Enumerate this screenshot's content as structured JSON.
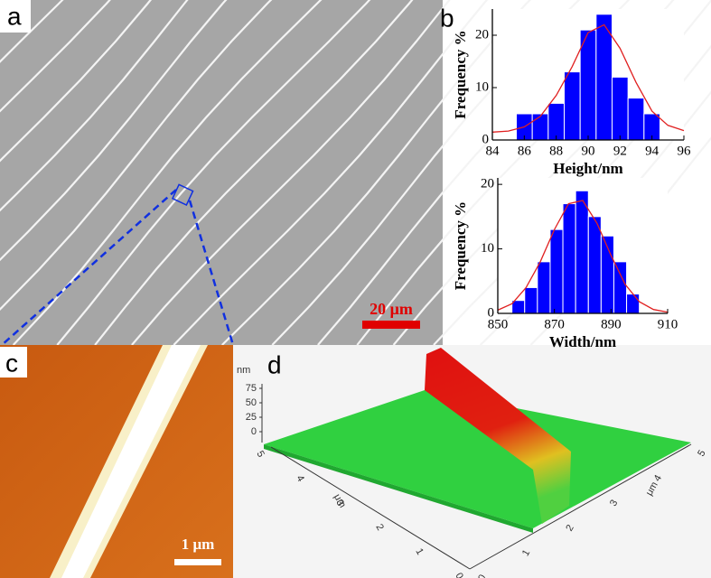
{
  "panels": {
    "a": {
      "label": "a",
      "scale_bar": "20 μm"
    },
    "b": {
      "label": "b"
    },
    "c": {
      "label": "c",
      "scale_bar": "1 μm"
    },
    "d": {
      "label": "d",
      "z_unit": "nm",
      "z_ticks": [
        "75",
        "50",
        "25",
        "0"
      ],
      "x_ticks": [
        "0",
        "1",
        "2",
        "3",
        "4",
        "5"
      ],
      "x_unit": "μm",
      "y_ticks": [
        "0",
        "1",
        "2",
        "3",
        "4",
        "5"
      ],
      "y_unit": "μm"
    }
  },
  "chart_data": [
    {
      "type": "histogram",
      "xlabel": "Height/nm",
      "ylabel": "Frequency %",
      "color": "#0000ff",
      "bins": [
        85.5,
        86.5,
        87.5,
        88.5,
        89.5,
        90.5,
        91.5,
        92.5,
        93.5,
        94.5
      ],
      "values": [
        5,
        5,
        7,
        13,
        21,
        24,
        12,
        8,
        5
      ],
      "xlim": [
        84,
        96
      ],
      "xticks": [
        84,
        86,
        88,
        90,
        92,
        94,
        96
      ],
      "ylim": [
        0,
        25
      ],
      "yticks": [
        0,
        10,
        20
      ],
      "fit": {
        "color": "#e02020",
        "x": [
          84,
          85,
          86,
          87,
          88,
          89,
          90,
          91,
          92,
          93,
          94,
          95,
          96
        ],
        "values": [
          1.5,
          1.7,
          2.5,
          4.5,
          8.5,
          14,
          20.5,
          22,
          17.5,
          11,
          5.5,
          2.8,
          1.8
        ]
      }
    },
    {
      "type": "histogram",
      "xlabel": "Width/nm",
      "ylabel": "Frequency %",
      "color": "#0000ff",
      "bins": [
        855,
        859.5,
        864,
        868.5,
        873,
        877.5,
        882,
        886.5,
        891,
        895.5,
        900
      ],
      "values": [
        2,
        4,
        8,
        13,
        17,
        19,
        15,
        12,
        8,
        3
      ],
      "xlim": [
        850,
        910
      ],
      "xticks": [
        850,
        870,
        890,
        910
      ],
      "ylim": [
        0,
        21
      ],
      "yticks": [
        0,
        10,
        20
      ],
      "fit": {
        "color": "#e02020",
        "x": [
          850,
          855,
          860,
          865,
          870,
          875,
          880,
          885,
          890,
          895,
          900,
          905,
          910
        ],
        "values": [
          0.5,
          1.5,
          4,
          8,
          13,
          17,
          17.5,
          14,
          9,
          4.5,
          1.8,
          0.6,
          0.2
        ]
      }
    }
  ]
}
